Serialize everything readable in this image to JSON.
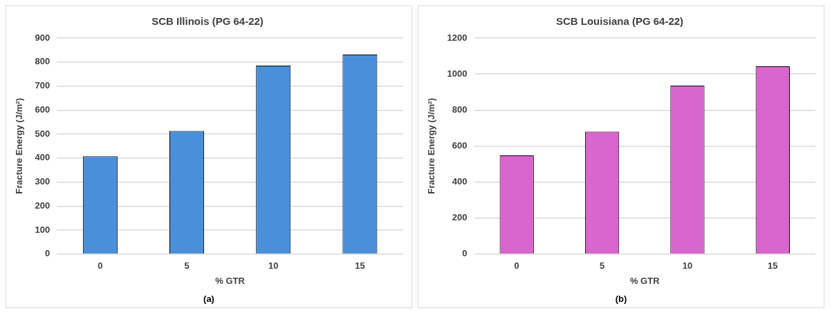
{
  "chart_data": [
    {
      "type": "bar",
      "title": "SCB Illinois (PG 64-22)",
      "xlabel": "% GTR",
      "ylabel": "Fracture Energy (J/m²)",
      "categories": [
        "0",
        "5",
        "10",
        "15"
      ],
      "values": [
        407,
        513,
        785,
        831
      ],
      "color": "#4a90d9",
      "ylim": [
        0,
        900
      ],
      "yticks": [
        0,
        100,
        200,
        300,
        400,
        500,
        600,
        700,
        800,
        900
      ],
      "grid": "y",
      "legend": false,
      "annotations": [
        "(a)"
      ]
    },
    {
      "type": "bar",
      "title": "SCB Louisiana (PG 64-22)",
      "xlabel": "% GTR",
      "ylabel": "Fracture Energy (J/m²)",
      "categories": [
        "0",
        "5",
        "10",
        "15"
      ],
      "values": [
        548,
        680,
        935,
        1043
      ],
      "color": "#d966cc",
      "ylim": [
        0,
        1200
      ],
      "yticks": [
        0,
        200,
        400,
        600,
        800,
        1000,
        1200
      ],
      "grid": "y",
      "legend": false,
      "annotations": [
        "(b)"
      ]
    }
  ]
}
